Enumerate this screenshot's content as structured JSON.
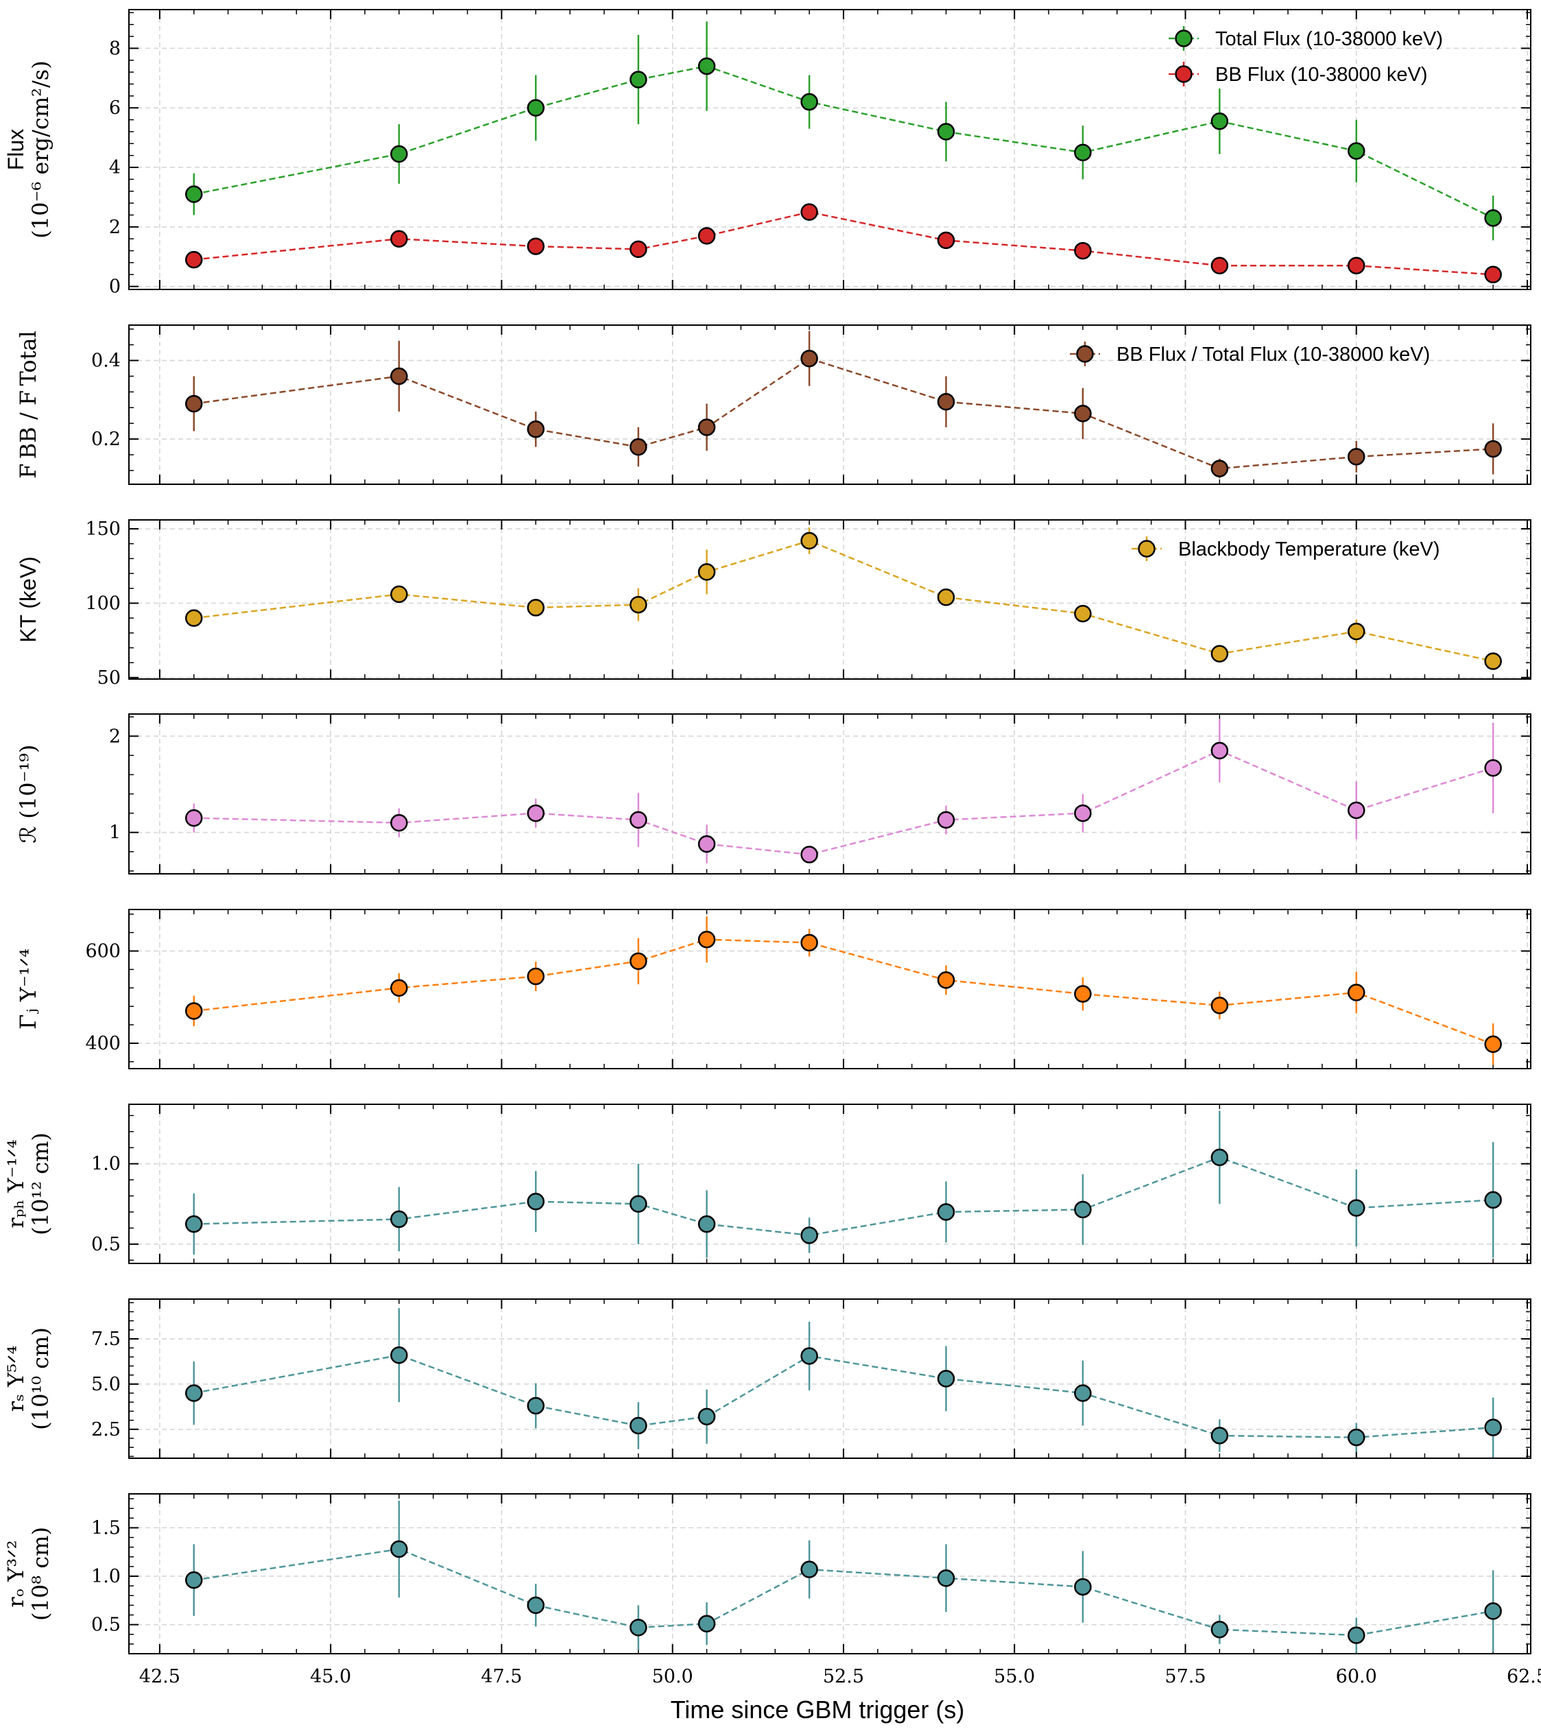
{
  "figure": {
    "xlabel": "Time since GBM trigger (s)",
    "x_ticks": [
      "42.5",
      "45.0",
      "47.5",
      "50.0",
      "52.5",
      "55.0",
      "57.5",
      "60.0",
      "62.5"
    ],
    "x_tick_values": [
      42.5,
      45.0,
      47.5,
      50.0,
      52.5,
      55.0,
      57.5,
      60.0,
      62.5
    ],
    "xlim": [
      42.05,
      62.55
    ]
  },
  "chart_data": [
    {
      "type": "line",
      "title": "",
      "ylabel": [
        "Flux",
        "(10⁻⁶ erg/cm²/s)"
      ],
      "ylim": [
        -0.1,
        9.3
      ],
      "yticks": [
        "0",
        "2",
        "4",
        "6",
        "8"
      ],
      "ytick_values": [
        0,
        2,
        4,
        6,
        8
      ],
      "legend_position": "top-right",
      "series": [
        {
          "name": "Total Flux (10-38000 keV)",
          "color": "#2ca02c",
          "x": [
            43,
            46,
            48,
            49.5,
            50.5,
            52,
            54,
            56,
            58,
            60,
            62
          ],
          "y": [
            3.1,
            4.45,
            6.0,
            6.95,
            7.4,
            6.2,
            5.2,
            4.5,
            5.55,
            4.55,
            2.3
          ],
          "err": [
            0.7,
            1.0,
            1.1,
            1.5,
            1.5,
            0.9,
            1.0,
            0.9,
            1.1,
            1.05,
            0.75
          ]
        },
        {
          "name": "BB Flux (10-38000 keV)",
          "color": "#d62728",
          "x": [
            43,
            46,
            48,
            49.5,
            50.5,
            52,
            54,
            56,
            58,
            60,
            62
          ],
          "y": [
            0.9,
            1.6,
            1.35,
            1.25,
            1.7,
            2.5,
            1.55,
            1.2,
            0.7,
            0.7,
            0.4
          ],
          "err": [
            0.12,
            0.12,
            0.12,
            0.12,
            0.12,
            0.15,
            0.12,
            0.12,
            0.1,
            0.1,
            0.1
          ]
        }
      ]
    },
    {
      "type": "line",
      "title": "",
      "ylabel": [
        "F BB / F Total"
      ],
      "ylim": [
        0.085,
        0.49
      ],
      "yticks": [
        "0.2",
        "0.4"
      ],
      "ytick_values": [
        0.2,
        0.4
      ],
      "legend_position": "top-right",
      "series": [
        {
          "name": "BB Flux / Total Flux (10-38000 keV)",
          "color": "#8b4a2b",
          "x": [
            43,
            46,
            48,
            49.5,
            50.5,
            52,
            54,
            56,
            58,
            60,
            62
          ],
          "y": [
            0.29,
            0.36,
            0.225,
            0.18,
            0.23,
            0.405,
            0.295,
            0.265,
            0.125,
            0.155,
            0.175
          ],
          "err": [
            0.07,
            0.09,
            0.045,
            0.05,
            0.06,
            0.07,
            0.065,
            0.065,
            0.025,
            0.04,
            0.065
          ]
        }
      ]
    },
    {
      "type": "line",
      "title": "",
      "ylabel": [
        "KT (keV)"
      ],
      "ylim": [
        49,
        156
      ],
      "yticks": [
        "50",
        "100",
        "150"
      ],
      "ytick_values": [
        50,
        100,
        150
      ],
      "legend_position": "top-right",
      "series": [
        {
          "name": "Blackbody Temperature (keV)",
          "color": "#daa520",
          "x": [
            43,
            46,
            48,
            49.5,
            50.5,
            52,
            54,
            56,
            58,
            60,
            62
          ],
          "y": [
            90,
            106,
            97,
            99,
            121,
            142,
            104,
            93,
            66,
            81,
            61
          ],
          "err": [
            3,
            4,
            5,
            11,
            15,
            9,
            5,
            4,
            3,
            8,
            4
          ]
        }
      ]
    },
    {
      "type": "line",
      "title": "",
      "ylabel": [
        "ℛ (10⁻¹⁹)"
      ],
      "ylim": [
        0.57,
        2.23
      ],
      "yticks": [
        "1",
        "2"
      ],
      "ytick_values": [
        1,
        2
      ],
      "legend_position": "none",
      "series": [
        {
          "name": "R",
          "color": "#dd8ad5",
          "x": [
            43,
            46,
            48,
            49.5,
            50.5,
            52,
            54,
            56,
            58,
            60,
            62
          ],
          "y": [
            1.15,
            1.1,
            1.2,
            1.13,
            0.88,
            0.77,
            1.13,
            1.2,
            1.85,
            1.23,
            1.67
          ],
          "err": [
            0.15,
            0.15,
            0.15,
            0.28,
            0.2,
            0.08,
            0.15,
            0.2,
            0.33,
            0.3,
            0.47
          ]
        }
      ]
    },
    {
      "type": "line",
      "title": "",
      "ylabel": [
        "Γⱼ Y⁻¹ᐟ⁴"
      ],
      "ylim": [
        345,
        690
      ],
      "yticks": [
        "400",
        "600"
      ],
      "ytick_values": [
        400,
        600
      ],
      "legend_position": "none",
      "series": [
        {
          "name": "Gamma_j Y^-1/4",
          "color": "#ff7f0e",
          "x": [
            43,
            46,
            48,
            49.5,
            50.5,
            52,
            54,
            56,
            58,
            60,
            62
          ],
          "y": [
            470,
            520,
            545,
            578,
            625,
            618,
            537,
            507,
            482,
            510,
            398
          ],
          "err": [
            33,
            32,
            32,
            50,
            50,
            30,
            32,
            36,
            30,
            45,
            45
          ]
        }
      ]
    },
    {
      "type": "line",
      "title": "",
      "ylabel": [
        "rₚₕ Y⁻¹ᐟ⁴",
        "(10¹² cm)"
      ],
      "ylim": [
        0.38,
        1.37
      ],
      "yticks": [
        "0.5",
        "1.0"
      ],
      "ytick_values": [
        0.5,
        1.0
      ],
      "legend_position": "none",
      "series": [
        {
          "name": "r_ph Y^-1/4",
          "color": "#4f969b",
          "x": [
            43,
            46,
            48,
            49.5,
            50.5,
            52,
            54,
            56,
            58,
            60,
            62
          ],
          "y": [
            0.625,
            0.655,
            0.765,
            0.75,
            0.625,
            0.555,
            0.7,
            0.715,
            1.04,
            0.725,
            0.775
          ],
          "err": [
            0.19,
            0.2,
            0.19,
            0.25,
            0.21,
            0.11,
            0.19,
            0.22,
            0.29,
            0.24,
            0.36
          ]
        }
      ]
    },
    {
      "type": "line",
      "title": "",
      "ylabel": [
        "rₛ Y⁵ᐟ⁴",
        "(10¹⁰ cm)"
      ],
      "ylim": [
        0.9,
        9.7
      ],
      "yticks": [
        "2.5",
        "5.0",
        "7.5"
      ],
      "ytick_values": [
        2.5,
        5.0,
        7.5
      ],
      "legend_position": "none",
      "series": [
        {
          "name": "r_s Y^5/4",
          "color": "#4f969b",
          "x": [
            43,
            46,
            48,
            49.5,
            50.5,
            52,
            54,
            56,
            58,
            60,
            62
          ],
          "y": [
            4.5,
            6.6,
            3.8,
            2.7,
            3.2,
            6.55,
            5.3,
            4.5,
            2.15,
            2.05,
            2.6
          ],
          "err": [
            1.75,
            2.6,
            1.25,
            1.3,
            1.5,
            1.9,
            1.8,
            1.8,
            0.9,
            0.8,
            1.65
          ]
        }
      ]
    },
    {
      "type": "line",
      "title": "",
      "ylabel": [
        "rₒ Y³ᐟ²",
        "(10⁸ cm)"
      ],
      "ylim": [
        0.2,
        1.85
      ],
      "yticks": [
        "0.5",
        "1.0",
        "1.5"
      ],
      "ytick_values": [
        0.5,
        1.0,
        1.5
      ],
      "legend_position": "none",
      "series": [
        {
          "name": "r_o Y^3/2",
          "color": "#4f969b",
          "x": [
            43,
            46,
            48,
            49.5,
            50.5,
            52,
            54,
            56,
            58,
            60,
            62
          ],
          "y": [
            0.96,
            1.28,
            0.7,
            0.47,
            0.51,
            1.07,
            0.98,
            0.89,
            0.45,
            0.39,
            0.64
          ],
          "err": [
            0.37,
            0.5,
            0.22,
            0.23,
            0.22,
            0.3,
            0.35,
            0.37,
            0.15,
            0.18,
            0.42
          ]
        }
      ]
    }
  ]
}
